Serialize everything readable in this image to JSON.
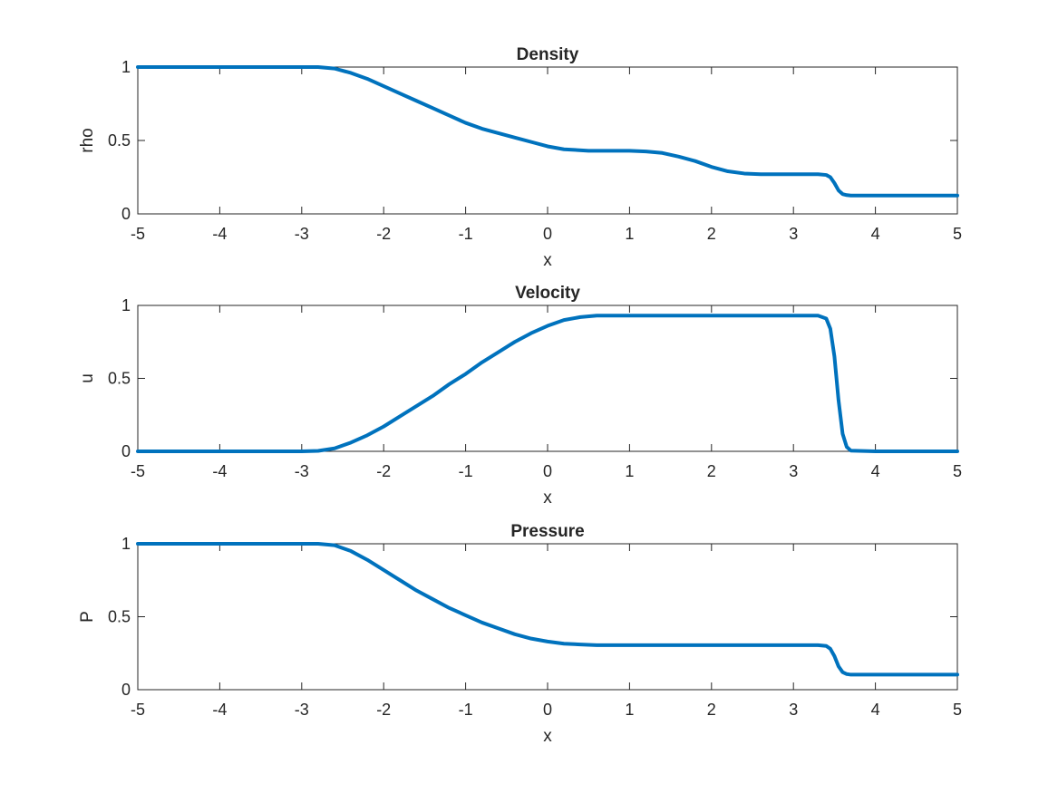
{
  "chart_data": [
    {
      "type": "line",
      "title": "Density",
      "xlabel": "x",
      "ylabel": "rho",
      "xlim": [
        -5,
        5
      ],
      "ylim": [
        0,
        1
      ],
      "xticks": [
        "-5",
        "-4",
        "-3",
        "-2",
        "-1",
        "0",
        "1",
        "2",
        "3",
        "4",
        "5"
      ],
      "yticks": [
        "0",
        "0.5",
        "1"
      ],
      "grid": false,
      "color": "#0072BD",
      "series": [
        {
          "x": [
            -5,
            -3.2,
            -3.0,
            -2.8,
            -2.6,
            -2.4,
            -2.2,
            -2.0,
            -1.8,
            -1.6,
            -1.4,
            -1.2,
            -1.0,
            -0.8,
            -0.6,
            -0.4,
            -0.2,
            0.0,
            0.2,
            0.5,
            1.0,
            1.2,
            1.4,
            1.6,
            1.8,
            2.0,
            2.2,
            2.4,
            2.6,
            3.0,
            3.3,
            3.4,
            3.45,
            3.5,
            3.55,
            3.6,
            3.65,
            3.7,
            4.0,
            5.0
          ],
          "y": [
            1.0,
            1.0,
            1.0,
            1.0,
            0.99,
            0.96,
            0.92,
            0.87,
            0.82,
            0.77,
            0.72,
            0.67,
            0.62,
            0.58,
            0.55,
            0.52,
            0.49,
            0.46,
            0.44,
            0.43,
            0.43,
            0.425,
            0.415,
            0.39,
            0.36,
            0.32,
            0.29,
            0.275,
            0.27,
            0.27,
            0.27,
            0.265,
            0.25,
            0.21,
            0.16,
            0.135,
            0.128,
            0.125,
            0.125,
            0.125
          ]
        }
      ]
    },
    {
      "type": "line",
      "title": "Velocity",
      "xlabel": "x",
      "ylabel": "u",
      "xlim": [
        -5,
        5
      ],
      "ylim": [
        0,
        1
      ],
      "xticks": [
        "-5",
        "-4",
        "-3",
        "-2",
        "-1",
        "0",
        "1",
        "2",
        "3",
        "4",
        "5"
      ],
      "yticks": [
        "0",
        "0.5",
        "1"
      ],
      "grid": false,
      "color": "#0072BD",
      "series": [
        {
          "x": [
            -5,
            -3.0,
            -2.8,
            -2.6,
            -2.4,
            -2.2,
            -2.0,
            -1.8,
            -1.6,
            -1.4,
            -1.2,
            -1.0,
            -0.8,
            -0.6,
            -0.4,
            -0.2,
            0.0,
            0.2,
            0.4,
            0.6,
            1.0,
            3.0,
            3.3,
            3.4,
            3.45,
            3.5,
            3.55,
            3.6,
            3.65,
            3.7,
            4.0,
            5.0
          ],
          "y": [
            0.0,
            0.0,
            0.003,
            0.02,
            0.06,
            0.11,
            0.17,
            0.24,
            0.31,
            0.38,
            0.46,
            0.53,
            0.61,
            0.68,
            0.75,
            0.81,
            0.86,
            0.9,
            0.92,
            0.93,
            0.93,
            0.93,
            0.93,
            0.91,
            0.84,
            0.65,
            0.35,
            0.12,
            0.03,
            0.005,
            0.0,
            0.0
          ]
        }
      ]
    },
    {
      "type": "line",
      "title": "Pressure",
      "xlabel": "x",
      "ylabel": "P",
      "xlim": [
        -5,
        5
      ],
      "ylim": [
        0,
        1
      ],
      "xticks": [
        "-5",
        "-4",
        "-3",
        "-2",
        "-1",
        "0",
        "1",
        "2",
        "3",
        "4",
        "5"
      ],
      "yticks": [
        "0",
        "0.5",
        "1"
      ],
      "grid": false,
      "color": "#0072BD",
      "series": [
        {
          "x": [
            -5,
            -3.0,
            -2.8,
            -2.6,
            -2.4,
            -2.2,
            -2.0,
            -1.8,
            -1.6,
            -1.4,
            -1.2,
            -1.0,
            -0.8,
            -0.6,
            -0.4,
            -0.2,
            0.0,
            0.2,
            0.4,
            0.6,
            1.0,
            3.0,
            3.3,
            3.4,
            3.45,
            3.5,
            3.55,
            3.6,
            3.65,
            3.7,
            4.0,
            5.0
          ],
          "y": [
            1.0,
            1.0,
            1.0,
            0.99,
            0.95,
            0.89,
            0.82,
            0.75,
            0.68,
            0.62,
            0.56,
            0.51,
            0.46,
            0.42,
            0.38,
            0.35,
            0.33,
            0.315,
            0.31,
            0.305,
            0.305,
            0.305,
            0.305,
            0.3,
            0.28,
            0.23,
            0.16,
            0.12,
            0.107,
            0.103,
            0.103,
            0.103
          ]
        }
      ]
    }
  ]
}
